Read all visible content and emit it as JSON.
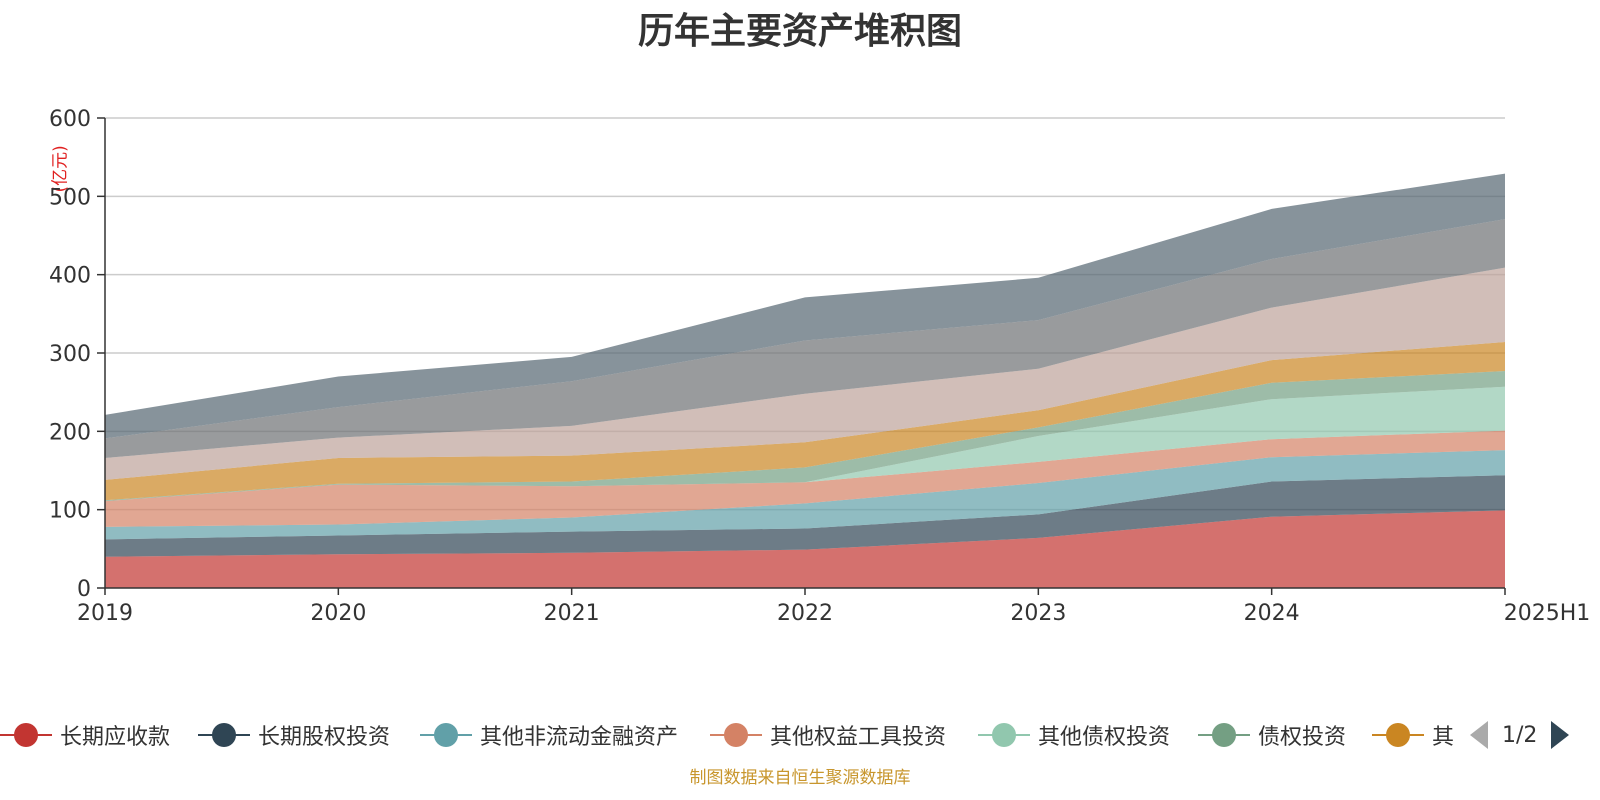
{
  "chart_data": {
    "type": "area",
    "stacked": true,
    "title": "历年主要资产堆积图",
    "ylabel": "(亿元)",
    "xlabel": "",
    "categories": [
      "2019",
      "2020",
      "2021",
      "2022",
      "2023",
      "2024",
      "2025H1"
    ],
    "ylim": [
      0,
      600
    ],
    "yticks": [
      0,
      100,
      200,
      300,
      400,
      500,
      600
    ],
    "grid": true,
    "series": [
      {
        "name": "长期应收款",
        "color": "#c23531",
        "values": [
          40,
          43,
          45,
          49,
          64,
          91,
          99
        ]
      },
      {
        "name": "长期股权投资",
        "color": "#2f4554",
        "values": [
          22,
          24,
          27,
          27,
          30,
          45,
          45
        ]
      },
      {
        "name": "其他非流动金融资产",
        "color": "#61a0a8",
        "values": [
          16,
          14,
          18,
          32,
          40,
          31,
          32
        ]
      },
      {
        "name": "其他权益工具投资",
        "color": "#d48265",
        "values": [
          33,
          51,
          40,
          27,
          27,
          23,
          25
        ]
      },
      {
        "name": "其他债权投资",
        "color": "#91c7ae",
        "values": [
          0,
          0,
          0,
          0,
          33,
          51,
          56
        ]
      },
      {
        "name": "债权投资",
        "color": "#749f83",
        "values": [
          1,
          1,
          6,
          19,
          11,
          21,
          20
        ]
      },
      {
        "name": "其他",
        "color": "#ca8622",
        "values": [
          26,
          33,
          33,
          32,
          22,
          29,
          37
        ]
      },
      {
        "name": "",
        "color": "#bda29a",
        "values": [
          28,
          26,
          38,
          62,
          53,
          67,
          95
        ]
      },
      {
        "name": "",
        "color": "#6e7074",
        "values": [
          25,
          39,
          57,
          68,
          62,
          62,
          62
        ]
      },
      {
        "name": "",
        "color": "#546570",
        "values": [
          30,
          39,
          31,
          55,
          54,
          64,
          58
        ]
      }
    ]
  },
  "legend": {
    "visible_labels": [
      "长期应收款",
      "长期股权投资",
      "其他非流动金融资产",
      "其他权益工具投资",
      "其他债权投资",
      "债权投资",
      "其"
    ],
    "page": "1/2"
  },
  "footer": "制图数据来自恒生聚源数据库"
}
